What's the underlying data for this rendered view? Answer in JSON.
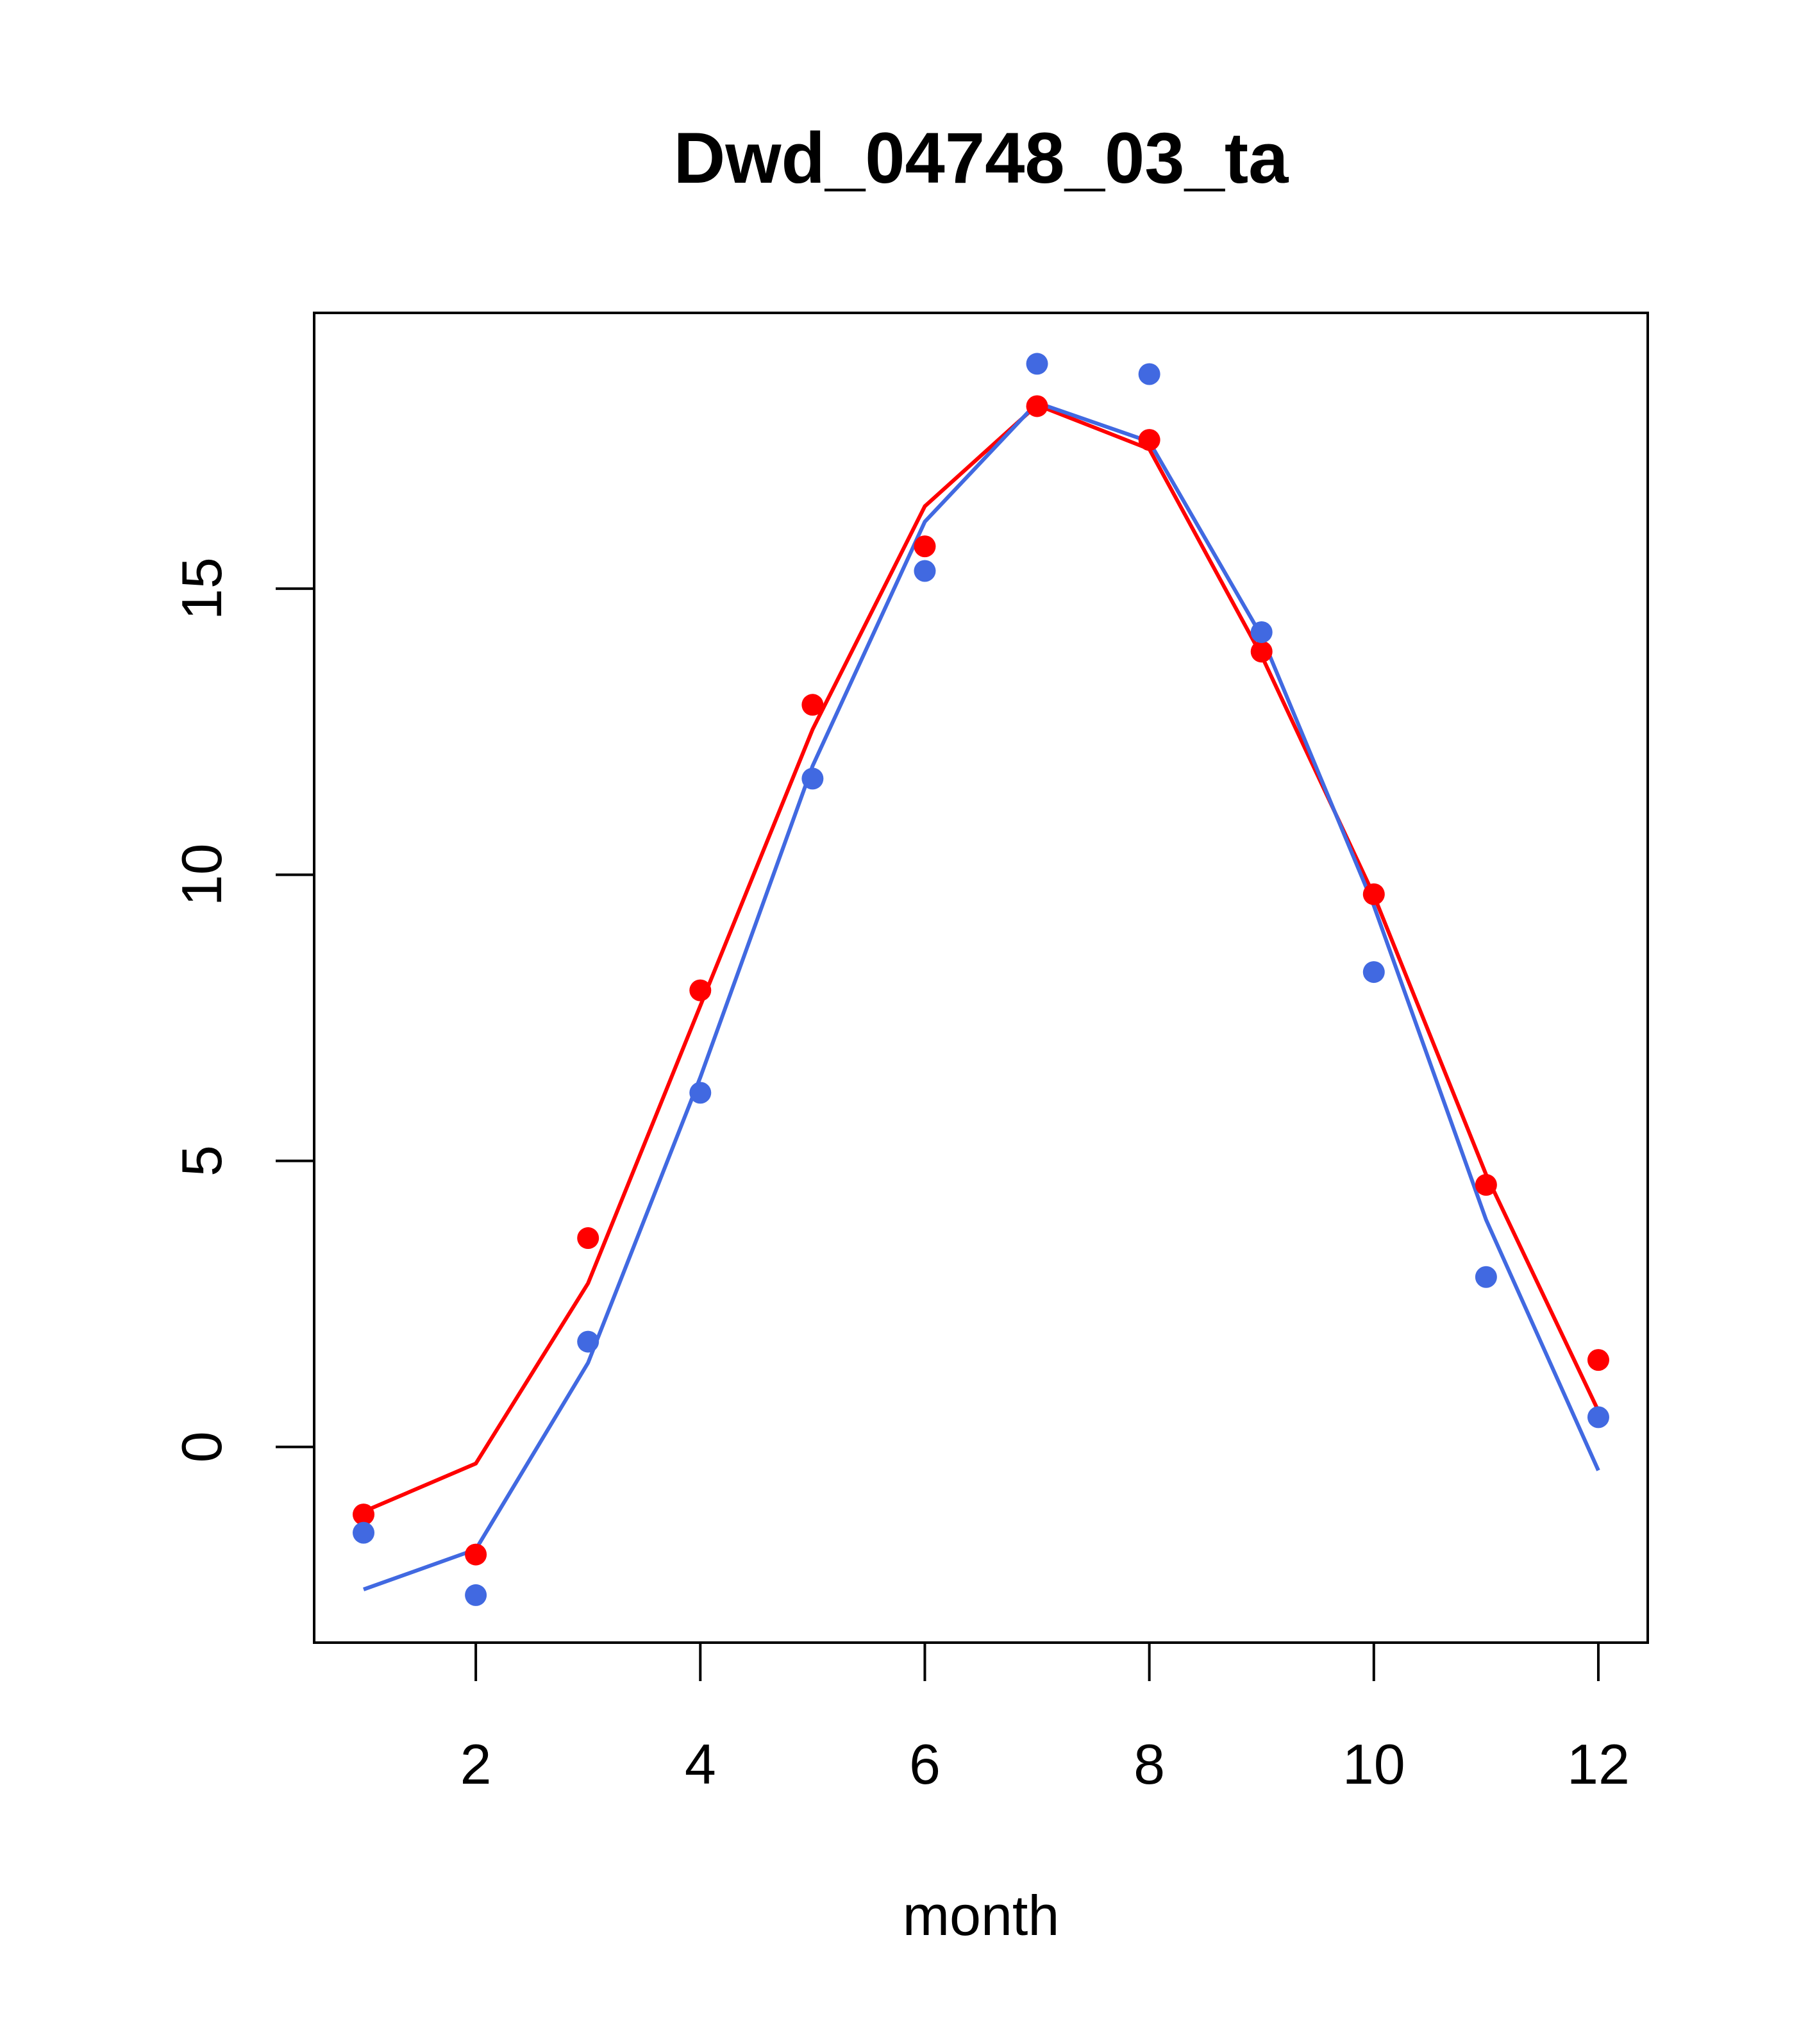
{
  "chart_data": {
    "type": "line",
    "title": "Dwd_04748_03_ta",
    "xlabel": "month",
    "ylabel": "",
    "xlim": [
      0.56,
      12.44
    ],
    "ylim": [
      -3.42,
      19.82
    ],
    "xticks": [
      2,
      4,
      6,
      8,
      10,
      12
    ],
    "yticks": [
      0,
      5,
      10,
      15
    ],
    "grid": false,
    "x": [
      1,
      2,
      3,
      4,
      5,
      6,
      7,
      8,
      9,
      10,
      11,
      12
    ],
    "series": [
      {
        "name": "red-points",
        "kind": "points",
        "color": "#ff0000",
        "values": [
          -1.18,
          -1.88,
          3.65,
          7.98,
          12.97,
          15.74,
          18.19,
          17.6,
          13.9,
          9.66,
          4.58,
          1.52
        ]
      },
      {
        "name": "red-line",
        "kind": "line",
        "color": "#ff0000",
        "values": [
          -1.13,
          -0.29,
          2.86,
          7.71,
          12.54,
          16.44,
          18.21,
          17.44,
          13.83,
          9.64,
          4.76,
          0.63
        ]
      },
      {
        "name": "blue-points",
        "kind": "points",
        "color": "#4169e1",
        "values": [
          -1.5,
          -2.59,
          1.84,
          6.19,
          11.68,
          15.31,
          18.93,
          18.75,
          14.24,
          8.3,
          2.97,
          0.52
        ]
      },
      {
        "name": "blue-line",
        "kind": "line",
        "color": "#4169e1",
        "values": [
          -2.49,
          -1.79,
          1.47,
          6.46,
          11.9,
          16.17,
          18.25,
          17.57,
          14.17,
          9.46,
          3.97,
          -0.41
        ]
      }
    ]
  }
}
